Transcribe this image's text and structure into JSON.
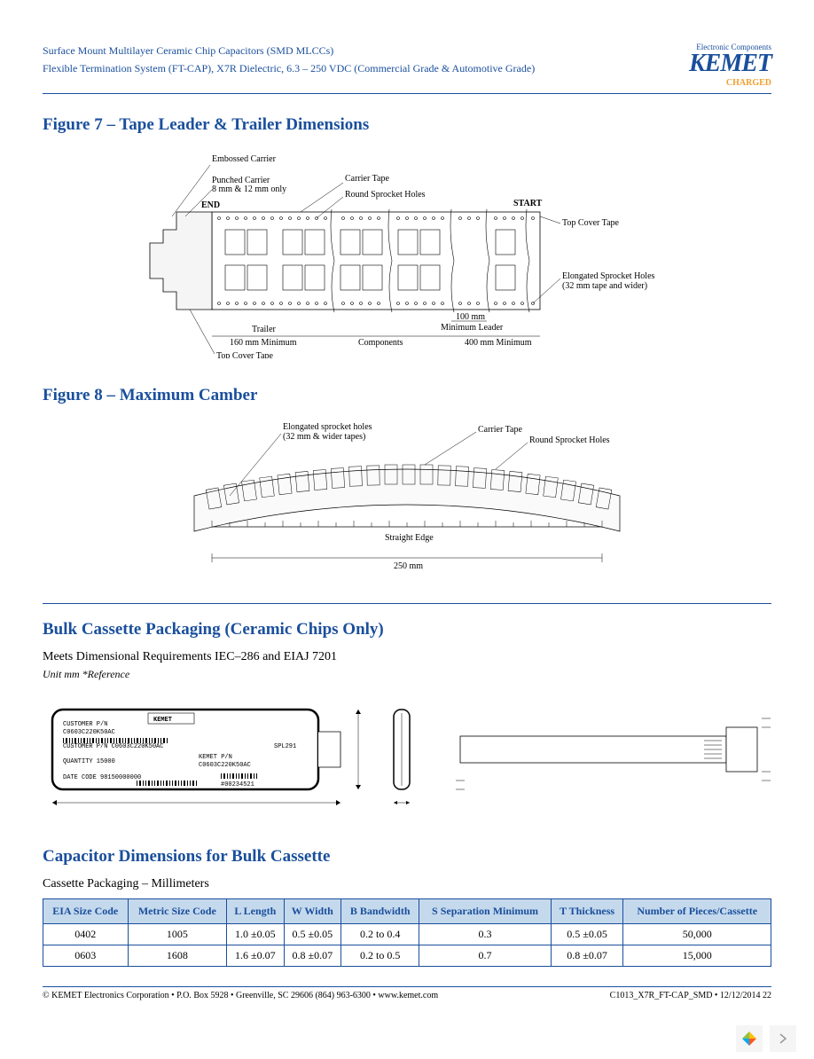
{
  "header": {
    "line1": "Surface Mount Multilayer Ceramic Chip Capacitors (SMD MLCCs)",
    "line2": "Flexible Termination System (FT-CAP), X7R Dielectric, 6.3 – 250 VDC (Commercial Grade & Automotive Grade)",
    "logo_sub": "Electronic Components",
    "logo_main": "KEMET",
    "logo_charged": "CHARGED"
  },
  "figure7": {
    "title": "Figure 7 – Tape Leader & Trailer Dimensions",
    "labels": {
      "embossed_carrier": "Embossed Carrier",
      "punched_carrier": "Punched Carrier\n8 mm & 12 mm only",
      "end": "END",
      "carrier_tape": "Carrier Tape",
      "round_sprocket": "Round Sprocket Holes",
      "start": "START",
      "top_cover_tape": "Top Cover Tape",
      "elongated_sprocket": "Elongated Sprocket Holes\n(32 mm tape and wider)",
      "trailer": "Trailer\n160 mm Minimum",
      "components": "Components",
      "min_leader_100": "100 mm\nMinimum Leader",
      "min_400": "400 mm Minimum",
      "top_cover_tape2": "Top Cover Tape"
    }
  },
  "figure8": {
    "title": "Figure 8 – Maximum Camber",
    "labels": {
      "elongated": "Elongated sprocket holes\n(32 mm & wider tapes)",
      "carrier_tape": "Carrier Tape",
      "round_sprocket": "Round Sprocket Holes",
      "straight_edge": "Straight Edge",
      "dimension": "250 mm"
    }
  },
  "bulk_cassette": {
    "title": "Bulk Cassette Packaging (Ceramic Chips Only)",
    "subtitle": "Meets Dimensional Requirements IEC–286 and EIAJ 7201",
    "note": "Unit mm *Reference",
    "label_customer_pn": "CUSTOMER P/N",
    "label_pn_value": "C0603C220K50AC",
    "label_kemet_pn": "KEMET P/N",
    "label_qty": "QUANTITY 15000",
    "label_date": "DATE CODE 98150000000",
    "label_code": "SPL291"
  },
  "cap_dims": {
    "title": "Capacitor Dimensions for Bulk Cassette",
    "subtitle": "Cassette Packaging – Millimeters",
    "columns": [
      "EIA Size Code",
      "Metric Size Code",
      "L Length",
      "W Width",
      "B Bandwidth",
      "S Separation Minimum",
      "T Thickness",
      "Number of Pieces/Cassette"
    ],
    "rows": [
      [
        "0402",
        "1005",
        "1.0 ±0.05",
        "0.5 ±0.05",
        "0.2 to 0.4",
        "0.3",
        "0.5 ±0.05",
        "50,000"
      ],
      [
        "0603",
        "1608",
        "1.6 ±0.07",
        "0.8 ±0.07",
        "0.2 to 0.5",
        "0.7",
        "0.8 ±0.07",
        "15,000"
      ]
    ]
  },
  "footer": {
    "left": "© KEMET Electronics Corporation • P.O. Box 5928 • Greenville, SC 29606 (864) 963-6300 • www.kemet.com",
    "right": "C1013_X7R_FT-CAP_SMD • 12/12/2014 22"
  },
  "colors": {
    "blue": "#1a4f9c",
    "orange": "#f0a030",
    "table_header_bg": "#c5d9ed"
  }
}
